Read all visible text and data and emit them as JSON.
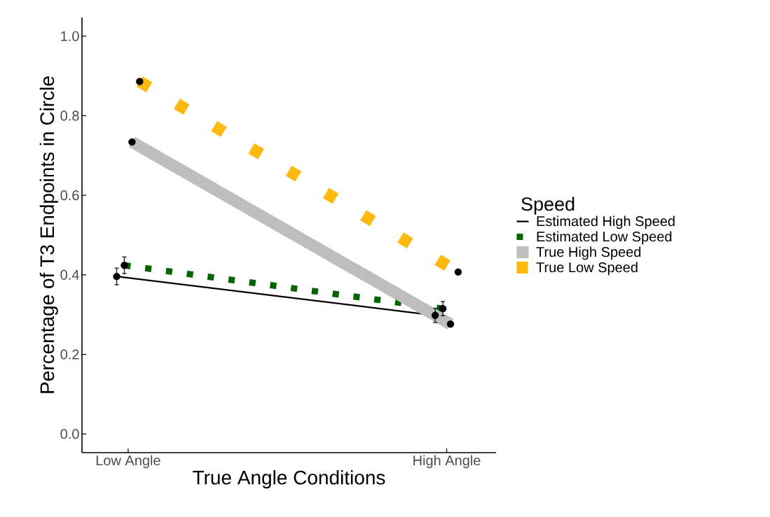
{
  "chart_data": {
    "type": "line",
    "xlabel": "True Angle Conditions",
    "ylabel": "Percentage of T3 Endpoints in Circle",
    "legend_title": "Speed",
    "legend": "right",
    "marker": "circle",
    "categories": [
      "Low Angle",
      "High Angle"
    ],
    "ylim": [
      -0.047,
      1.047
    ],
    "yticks": [
      {
        "value": 0,
        "label": "0.0"
      },
      {
        "value": 0.2,
        "label": "0.2"
      },
      {
        "value": 0.4,
        "label": "0.4"
      },
      {
        "value": 0.6,
        "label": "0.6"
      },
      {
        "value": 0.8,
        "label": "0.8"
      },
      {
        "value": 1,
        "label": "1.0"
      }
    ],
    "series": [
      {
        "name": "Estimated High Speed",
        "color": "#000000",
        "line_style": "solid",
        "values": [
          0.396,
          0.298
        ],
        "errors": [
          0.021,
          0.018
        ]
      },
      {
        "name": "Estimated Low Speed",
        "color": "#006400",
        "line_style": "dotted",
        "values": [
          0.424,
          0.315
        ],
        "errors": [
          0.021,
          0.018
        ]
      },
      {
        "name": "True High Speed",
        "color": "#bebebe",
        "line_style": "solid",
        "values": [
          0.734,
          0.276
        ]
      },
      {
        "name": "True Low Speed",
        "color": "#ffb90f",
        "line_style": "dotted",
        "values": [
          0.886,
          0.407
        ]
      }
    ]
  }
}
